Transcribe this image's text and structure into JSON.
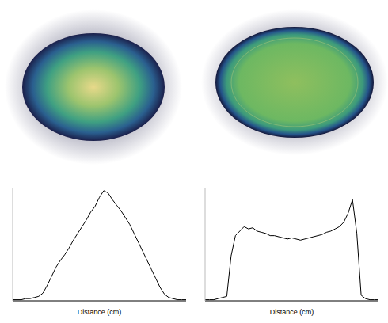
{
  "chart_data": [
    {
      "type": "line",
      "x_label": "Distance (cm)",
      "tick_labels": false,
      "color": "#000000",
      "xlim": [
        0,
        40
      ],
      "ylim": [
        0,
        100
      ],
      "x": [
        0,
        1,
        2,
        3,
        4,
        5,
        6,
        7,
        8,
        9,
        10,
        11,
        12,
        13,
        14,
        15,
        16,
        17,
        18,
        19,
        20,
        21,
        22,
        23,
        24,
        25,
        26,
        27,
        28,
        29,
        30,
        31,
        32,
        33,
        34,
        35,
        36,
        37,
        38,
        39,
        40
      ],
      "values": [
        1,
        1,
        1,
        2,
        2,
        3,
        4,
        7,
        14,
        22,
        30,
        36,
        41,
        47,
        54,
        60,
        66,
        72,
        79,
        84,
        92,
        98,
        96,
        90,
        85,
        80,
        74,
        68,
        60,
        52,
        44,
        36,
        28,
        20,
        12,
        6,
        3,
        2,
        1,
        1,
        1
      ]
    },
    {
      "type": "line",
      "x_label": "Distance (cm)",
      "tick_labels": false,
      "color": "#000000",
      "xlim": [
        0,
        40
      ],
      "ylim": [
        0,
        100
      ],
      "x": [
        0,
        1,
        2,
        3,
        4,
        5,
        6,
        7,
        8,
        9,
        10,
        11,
        12,
        13,
        14,
        15,
        16,
        17,
        18,
        19,
        20,
        21,
        22,
        23,
        24,
        25,
        26,
        27,
        28,
        29,
        30,
        31,
        32,
        33,
        34,
        35,
        36,
        37,
        38,
        39,
        40
      ],
      "values": [
        1,
        1,
        1,
        2,
        3,
        4,
        40,
        58,
        62,
        66,
        64,
        65,
        62,
        61,
        60,
        58,
        58,
        57,
        56,
        55,
        56,
        55,
        54,
        55,
        56,
        57,
        58,
        59,
        61,
        62,
        64,
        66,
        70,
        78,
        90,
        60,
        5,
        2,
        1,
        1,
        1
      ]
    }
  ]
}
